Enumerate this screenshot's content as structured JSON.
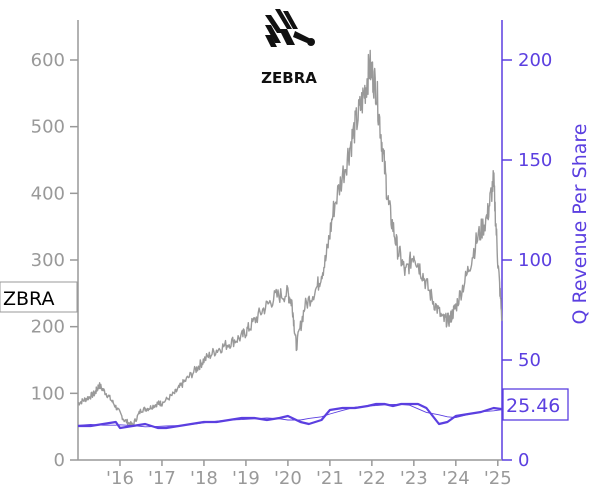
{
  "ticker_label": "ZBRA",
  "revenue_label": "25.46",
  "logo": {
    "name": "zebra-logo",
    "text": "ZEBRA"
  },
  "colors": {
    "price": "#999999",
    "revenue": "#5b3fe0",
    "left_axis": "#999999",
    "right_axis": "#5b3fe0"
  },
  "chart_data": {
    "type": "line",
    "x_ticks": [
      "'16",
      "'17",
      "'18",
      "'19",
      "'20",
      "'21",
      "'22",
      "'23",
      "'24",
      "'25"
    ],
    "left_axis": {
      "ticks": [
        0,
        100,
        200,
        300,
        400,
        500,
        600
      ],
      "ylim": [
        0,
        660
      ]
    },
    "right_axis": {
      "label": "Q Revenue Per Share",
      "ticks": [
        0,
        50,
        100,
        150,
        200
      ],
      "ylim": [
        0,
        220
      ]
    },
    "series": [
      {
        "axis": "left",
        "x": [
          2015.0,
          2015.2,
          2015.4,
          2015.5,
          2015.7,
          2015.9,
          2016.1,
          2016.3,
          2016.5,
          2016.7,
          2016.9,
          2017.0,
          2017.3,
          2017.5,
          2017.8,
          2018.0,
          2018.3,
          2018.6,
          2018.9,
          2019.1,
          2019.4,
          2019.7,
          2020.0,
          2020.1,
          2020.2,
          2020.4,
          2020.7,
          2020.9,
          2021.1,
          2021.4,
          2021.6,
          2021.8,
          2021.95,
          2022.1,
          2022.25,
          2022.4,
          2022.6,
          2022.8,
          2023.0,
          2023.2,
          2023.45,
          2023.7,
          2023.85,
          2024.0,
          2024.25,
          2024.5,
          2024.75,
          2024.9,
          2025.0,
          2025.1
        ],
        "y": [
          85,
          92,
          100,
          112,
          98,
          80,
          60,
          52,
          75,
          78,
          85,
          85,
          100,
          115,
          135,
          150,
          165,
          175,
          185,
          200,
          225,
          245,
          250,
          235,
          170,
          230,
          260,
          300,
          380,
          450,
          500,
          545,
          590,
          560,
          470,
          380,
          320,
          280,
          310,
          280,
          240,
          210,
          210,
          230,
          275,
          330,
          365,
          420,
          300,
          210
        ]
      },
      {
        "axis": "right",
        "x": [
          2015.0,
          2015.3,
          2015.6,
          2015.9,
          2016.0,
          2016.3,
          2016.6,
          2016.9,
          2017.1,
          2017.4,
          2017.7,
          2018.0,
          2018.3,
          2018.6,
          2018.9,
          2019.2,
          2019.5,
          2019.8,
          2020.0,
          2020.3,
          2020.5,
          2020.8,
          2021.0,
          2021.3,
          2021.6,
          2021.9,
          2022.1,
          2022.3,
          2022.5,
          2022.7,
          2022.9,
          2023.1,
          2023.3,
          2023.6,
          2023.8,
          2024.0,
          2024.3,
          2024.6,
          2024.9,
          2025.1
        ],
        "y": [
          17,
          17,
          18,
          19,
          16,
          17,
          18,
          16,
          16,
          17,
          18,
          19,
          19,
          20,
          21,
          21,
          20,
          21,
          22,
          19,
          18,
          20,
          25,
          26,
          26,
          27,
          28,
          28,
          27,
          28,
          28,
          28,
          26,
          18,
          19,
          22,
          23,
          24,
          26,
          25.46
        ]
      }
    ]
  }
}
